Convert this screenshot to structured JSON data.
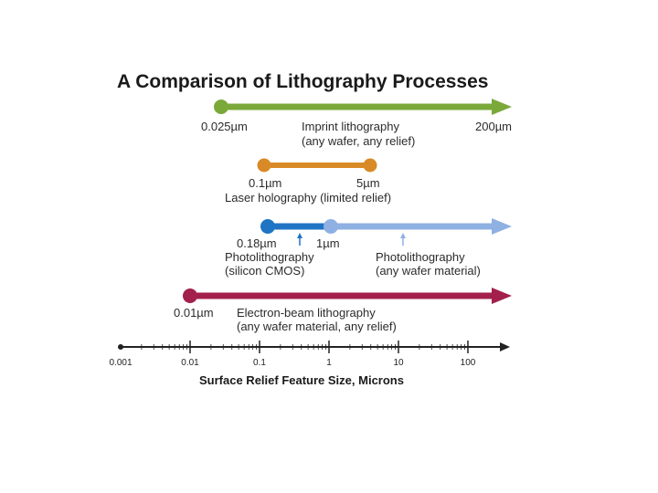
{
  "title": "A Comparison of Lithography Processes",
  "colors": {
    "imprint": "#7aa93a",
    "laser": "#d88a27",
    "photo_cmos": "#1f74c4",
    "photo_any": "#8fb0e3",
    "ebeam": "#a3204c",
    "axis": "#222222"
  },
  "processes": {
    "imprint": {
      "min": "0.025µm",
      "max": "200µm",
      "name": "Imprint lithography",
      "note": "(any wafer, any relief)"
    },
    "laser": {
      "min": "0.1µm",
      "max": "5µm",
      "name": "Laser holography (limited relief)"
    },
    "photo_cmos": {
      "min": "0.18µm",
      "name": "Photolithography",
      "note": "(silicon CMOS)"
    },
    "photo_any": {
      "min": "1µm",
      "name": "Photolithography",
      "note": "(any wafer material)"
    },
    "ebeam": {
      "min": "0.01µm",
      "name": "Electron-beam lithography",
      "note": "(any wafer material, any relief)"
    }
  },
  "axis": {
    "ticks": [
      "0.001",
      "0.01",
      "0.1",
      "1",
      "10",
      "100"
    ],
    "title": "Surface Relief Feature Size, Microns"
  }
}
